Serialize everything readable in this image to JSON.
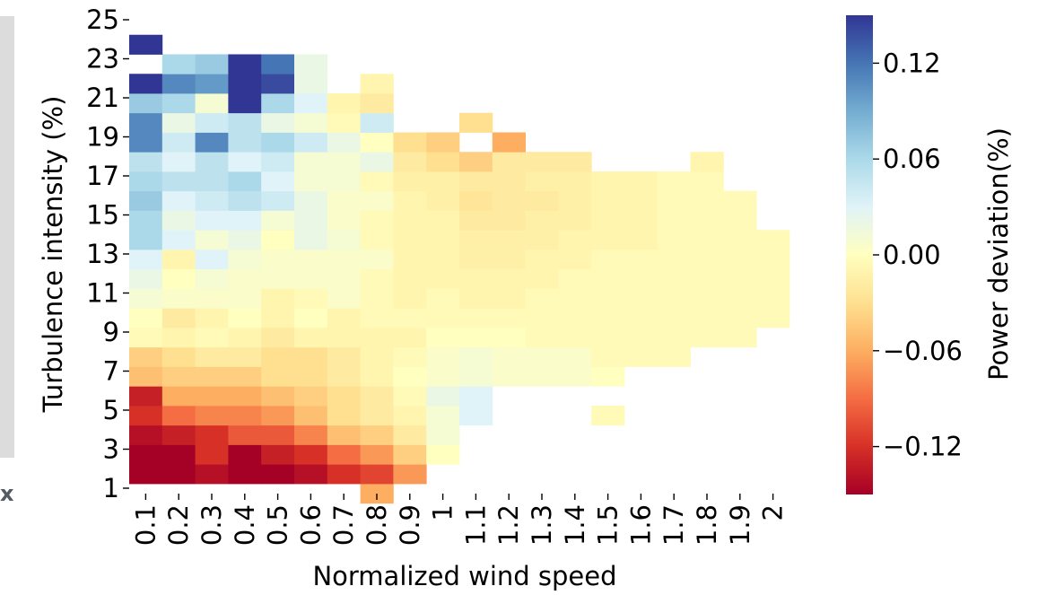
{
  "page": {
    "side_mark": "x"
  },
  "chart_data": {
    "type": "heatmap",
    "title": "",
    "xlabel": "Normalized wind speed",
    "ylabel": "Turbulence intensity (%)",
    "x": [
      "0.1",
      "0.2",
      "0.3",
      "0.4",
      "0.5",
      "0.6",
      "0.7",
      "0.8",
      "0.9",
      "1",
      "1.1",
      "1.2",
      "1.3",
      "1.4",
      "1.5",
      "1.6",
      "1.7",
      "1.8",
      "1.9",
      "2"
    ],
    "y": [
      1,
      2,
      3,
      4,
      5,
      6,
      7,
      8,
      9,
      10,
      11,
      12,
      13,
      14,
      15,
      16,
      17,
      18,
      19,
      20,
      21,
      22,
      23,
      24
    ],
    "y_ticks": [
      "1",
      "3",
      "5",
      "7",
      "9",
      "11",
      "13",
      "15",
      "17",
      "19",
      "21",
      "23",
      "25"
    ],
    "values": [
      [
        null,
        null,
        null,
        null,
        null,
        null,
        null,
        -0.06,
        null,
        null,
        null,
        null,
        null,
        null,
        null,
        null,
        null,
        null,
        null,
        null
      ],
      [
        -0.15,
        -0.15,
        -0.14,
        -0.15,
        -0.15,
        -0.14,
        -0.12,
        -0.11,
        -0.07,
        null,
        null,
        null,
        null,
        null,
        null,
        null,
        null,
        null,
        null,
        null
      ],
      [
        -0.15,
        -0.15,
        -0.12,
        -0.15,
        -0.13,
        -0.12,
        -0.09,
        -0.07,
        -0.04,
        0.0,
        null,
        null,
        null,
        null,
        null,
        null,
        null,
        null,
        null,
        null
      ],
      [
        -0.14,
        -0.13,
        -0.12,
        -0.1,
        -0.1,
        -0.08,
        -0.05,
        -0.04,
        -0.02,
        0.01,
        null,
        null,
        null,
        null,
        null,
        null,
        null,
        null,
        null,
        null
      ],
      [
        -0.12,
        -0.09,
        -0.08,
        -0.08,
        -0.07,
        -0.05,
        -0.03,
        -0.02,
        -0.01,
        0.01,
        0.03,
        null,
        null,
        null,
        -0.005,
        null,
        null,
        null,
        null,
        null
      ],
      [
        -0.13,
        -0.06,
        -0.06,
        -0.06,
        -0.05,
        -0.04,
        -0.03,
        -0.02,
        -0.005,
        0.02,
        0.03,
        null,
        null,
        null,
        null,
        null,
        null,
        null,
        null,
        null
      ],
      [
        -0.05,
        -0.04,
        -0.04,
        -0.04,
        -0.03,
        -0.03,
        -0.02,
        -0.01,
        0.0,
        0.005,
        0.01,
        0.005,
        0.005,
        0.005,
        0.0,
        null,
        null,
        null,
        null,
        null
      ],
      [
        -0.04,
        -0.03,
        -0.02,
        -0.02,
        -0.03,
        -0.03,
        -0.02,
        -0.01,
        -0.005,
        0.005,
        0.01,
        0.005,
        0.005,
        0.005,
        -0.005,
        -0.005,
        -0.005,
        null,
        null,
        null
      ],
      [
        -0.005,
        -0.01,
        -0.005,
        -0.01,
        -0.02,
        -0.01,
        -0.01,
        -0.01,
        -0.01,
        0.0,
        0.0,
        0.0,
        -0.005,
        -0.005,
        -0.005,
        -0.005,
        -0.005,
        -0.005,
        -0.005,
        null
      ],
      [
        0.0,
        -0.02,
        -0.01,
        0.0,
        -0.01,
        0.0,
        -0.01,
        -0.005,
        -0.005,
        -0.005,
        -0.005,
        -0.005,
        -0.005,
        -0.005,
        -0.005,
        -0.005,
        -0.005,
        -0.005,
        -0.005,
        -0.005
      ],
      [
        0.01,
        0.005,
        0.005,
        0.005,
        -0.01,
        -0.005,
        0.005,
        -0.005,
        -0.01,
        -0.005,
        -0.01,
        -0.01,
        -0.005,
        -0.005,
        -0.005,
        -0.005,
        -0.005,
        -0.005,
        -0.005,
        -0.005
      ],
      [
        0.02,
        0.0,
        0.01,
        0.005,
        0.005,
        0.005,
        0.005,
        -0.005,
        -0.01,
        -0.01,
        -0.01,
        -0.01,
        -0.01,
        -0.005,
        -0.005,
        -0.005,
        -0.005,
        -0.005,
        -0.005,
        -0.005
      ],
      [
        0.03,
        -0.01,
        0.03,
        0.01,
        0.005,
        0.005,
        0.005,
        0.005,
        -0.01,
        -0.01,
        -0.015,
        -0.015,
        -0.01,
        -0.01,
        -0.005,
        -0.005,
        -0.005,
        -0.005,
        -0.005,
        -0.005
      ],
      [
        0.06,
        0.03,
        0.01,
        0.02,
        0.0,
        0.02,
        0.01,
        -0.005,
        -0.01,
        -0.01,
        -0.015,
        -0.015,
        -0.015,
        -0.01,
        -0.01,
        -0.01,
        -0.005,
        -0.005,
        -0.005,
        -0.005
      ],
      [
        0.06,
        0.02,
        0.03,
        0.03,
        0.01,
        0.02,
        0.005,
        -0.005,
        -0.01,
        -0.01,
        -0.02,
        -0.02,
        -0.015,
        -0.015,
        -0.01,
        -0.01,
        -0.005,
        -0.005,
        -0.005,
        null
      ],
      [
        0.07,
        0.03,
        0.04,
        0.05,
        0.04,
        0.02,
        0.005,
        0.005,
        -0.01,
        -0.015,
        -0.025,
        -0.02,
        -0.02,
        -0.015,
        -0.01,
        -0.01,
        -0.005,
        -0.005,
        -0.005,
        null
      ],
      [
        0.06,
        0.05,
        0.05,
        0.06,
        0.03,
        0.01,
        0.01,
        -0.005,
        -0.015,
        -0.015,
        -0.02,
        -0.02,
        -0.015,
        -0.015,
        -0.01,
        -0.01,
        -0.005,
        -0.005,
        null,
        null
      ],
      [
        0.05,
        0.03,
        0.05,
        0.03,
        0.04,
        0.01,
        0.01,
        0.02,
        -0.02,
        -0.03,
        -0.04,
        -0.02,
        -0.02,
        -0.02,
        null,
        null,
        null,
        -0.01,
        null,
        null
      ],
      [
        0.11,
        0.04,
        0.11,
        0.05,
        0.06,
        0.04,
        0.02,
        0.0,
        -0.03,
        -0.04,
        null,
        -0.06,
        null,
        null,
        null,
        null,
        null,
        null,
        null,
        null
      ],
      [
        0.11,
        0.02,
        0.04,
        0.05,
        0.02,
        0.01,
        -0.005,
        0.04,
        null,
        null,
        -0.03,
        null,
        null,
        null,
        null,
        null,
        null,
        null,
        null,
        null
      ],
      [
        0.07,
        0.06,
        0.01,
        0.15,
        0.06,
        0.03,
        -0.01,
        -0.02,
        null,
        null,
        null,
        null,
        null,
        null,
        null,
        null,
        null,
        null,
        null,
        null
      ],
      [
        0.15,
        0.11,
        0.1,
        0.15,
        0.14,
        0.02,
        null,
        -0.01,
        null,
        null,
        null,
        null,
        null,
        null,
        null,
        null,
        null,
        null,
        null,
        null
      ],
      [
        null,
        0.06,
        0.07,
        0.15,
        0.12,
        0.02,
        null,
        null,
        null,
        null,
        null,
        null,
        null,
        null,
        null,
        null,
        null,
        null,
        null,
        null
      ],
      [
        0.15,
        null,
        null,
        null,
        null,
        null,
        null,
        null,
        null,
        null,
        null,
        null,
        null,
        null,
        null,
        null,
        null,
        null,
        null,
        null
      ]
    ],
    "colorbar": {
      "label": "Power deviation(%)",
      "range": [
        -0.15,
        0.15
      ],
      "ticks": [
        -0.12,
        -0.06,
        0.0,
        0.06,
        0.12
      ],
      "tick_labels": [
        "−0.12",
        "−0.06",
        "0.00",
        "0.06",
        "0.12"
      ],
      "colormap": "RdYlBu",
      "stops": [
        "#a50026",
        "#d73027",
        "#f46d43",
        "#fdae61",
        "#fee090",
        "#ffffbf",
        "#e0f3f8",
        "#abd9e9",
        "#74add1",
        "#4575b4",
        "#313695"
      ]
    },
    "grid": false
  }
}
